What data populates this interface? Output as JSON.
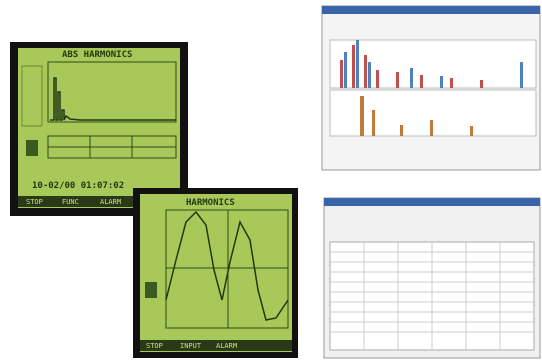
{
  "screen_1": {
    "title": "ABS HARMONICS",
    "timestamp": "10-02/00 01:07:02",
    "buttons": [
      "STOP",
      "FUNC",
      "ALARM"
    ]
  },
  "screen_2": {
    "title": "HARMONICS",
    "buttons": [
      "STOP",
      "INPUT",
      "ALARM"
    ]
  }
}
